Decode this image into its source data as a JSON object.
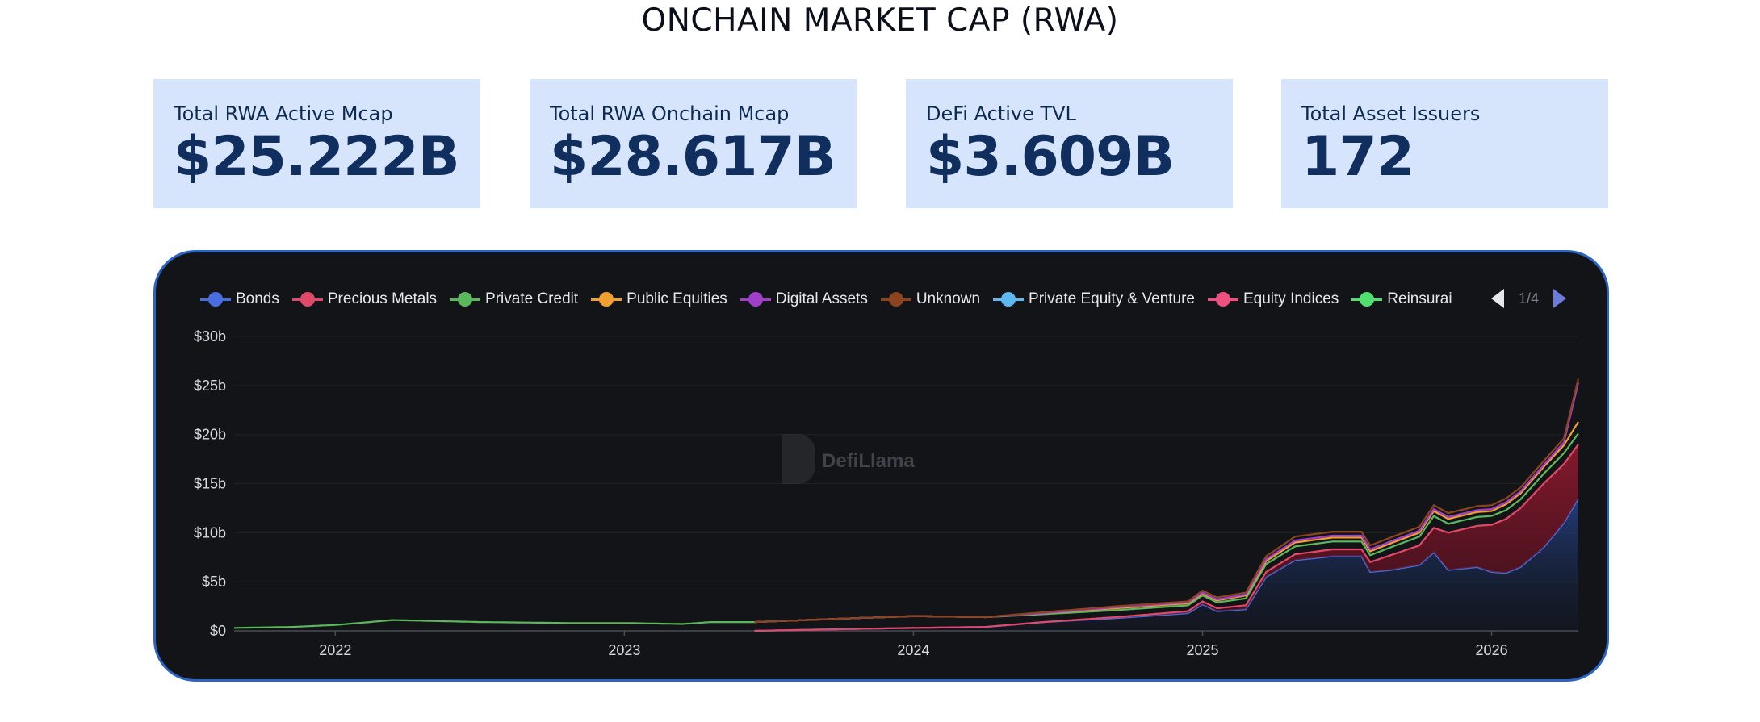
{
  "page_title": "ONCHAIN MARKET CAP (RWA)",
  "stats": [
    {
      "label": "Total RWA Active Mcap",
      "value": "$25.222B"
    },
    {
      "label": "Total RWA Onchain Mcap",
      "value": "$28.617B"
    },
    {
      "label": "DeFi Active TVL",
      "value": "$3.609B"
    },
    {
      "label": "Total Asset Issuers",
      "value": "172"
    }
  ],
  "legend": {
    "items": [
      {
        "name": "Bonds",
        "color": "#4a6ee0"
      },
      {
        "name": "Precious Metals",
        "color": "#e04a68"
      },
      {
        "name": "Private Credit",
        "color": "#5cb85c"
      },
      {
        "name": "Public Equities",
        "color": "#f0a030"
      },
      {
        "name": "Digital Assets",
        "color": "#a040c8"
      },
      {
        "name": "Unknown",
        "color": "#8a4420"
      },
      {
        "name": "Private Equity & Venture",
        "color": "#60b8f0"
      },
      {
        "name": "Equity Indices",
        "color": "#f05080"
      },
      {
        "name": "Reinsurai",
        "color": "#50e070"
      }
    ],
    "page_indicator": "1/4"
  },
  "watermark": "DefiLlama",
  "chart_data": {
    "type": "area",
    "stacked": true,
    "x_ticks": [
      "2022",
      "2023",
      "2024",
      "2025",
      "2026"
    ],
    "y_ticks": [
      "$0",
      "$5b",
      "$10b",
      "$15b",
      "$20b",
      "$25b",
      "$30b"
    ],
    "ylim": [
      0,
      30
    ],
    "xlim": [
      2021.65,
      2026.3
    ],
    "grid": true,
    "series": [
      {
        "name": "Bonds",
        "color": "#4a6ee0",
        "points": [
          [
            2023.45,
            0
          ],
          [
            2023.8,
            0.2
          ],
          [
            2024.0,
            0.3
          ],
          [
            2024.25,
            0.4
          ],
          [
            2024.45,
            0.9
          ],
          [
            2024.7,
            1.3
          ],
          [
            2024.95,
            1.8
          ],
          [
            2025.0,
            2.7
          ],
          [
            2025.05,
            2.0
          ],
          [
            2025.15,
            2.2
          ],
          [
            2025.22,
            5.5
          ],
          [
            2025.32,
            7.2
          ],
          [
            2025.45,
            7.6
          ],
          [
            2025.55,
            7.6
          ],
          [
            2025.58,
            6.0
          ],
          [
            2025.65,
            6.2
          ],
          [
            2025.75,
            6.7
          ],
          [
            2025.8,
            8.0
          ],
          [
            2025.85,
            6.2
          ],
          [
            2025.95,
            6.5
          ],
          [
            2026.0,
            6.0
          ],
          [
            2026.05,
            5.9
          ],
          [
            2026.1,
            6.5
          ],
          [
            2026.18,
            8.5
          ],
          [
            2026.25,
            11.0
          ],
          [
            2026.3,
            13.5
          ]
        ]
      },
      {
        "name": "Precious Metals",
        "color": "#e04a68",
        "points": [
          [
            2023.45,
            0
          ],
          [
            2023.8,
            0
          ],
          [
            2024.0,
            0
          ],
          [
            2024.25,
            0
          ],
          [
            2024.45,
            0
          ],
          [
            2024.7,
            0.1
          ],
          [
            2024.95,
            0.2
          ],
          [
            2025.0,
            0.3
          ],
          [
            2025.05,
            0.3
          ],
          [
            2025.15,
            0.4
          ],
          [
            2025.22,
            0.5
          ],
          [
            2025.32,
            0.6
          ],
          [
            2025.45,
            0.7
          ],
          [
            2025.55,
            0.7
          ],
          [
            2025.58,
            1.0
          ],
          [
            2025.65,
            1.5
          ],
          [
            2025.75,
            2.0
          ],
          [
            2025.8,
            2.5
          ],
          [
            2025.85,
            3.8
          ],
          [
            2025.95,
            4.2
          ],
          [
            2026.0,
            4.8
          ],
          [
            2026.05,
            5.5
          ],
          [
            2026.1,
            6.0
          ],
          [
            2026.18,
            6.5
          ],
          [
            2026.25,
            6.0
          ],
          [
            2026.3,
            5.5
          ]
        ]
      },
      {
        "name": "Private Credit",
        "color": "#5cb85c",
        "points": [
          [
            2021.65,
            0.3
          ],
          [
            2021.85,
            0.4
          ],
          [
            2022.0,
            0.6
          ],
          [
            2022.2,
            1.1
          ],
          [
            2022.5,
            0.9
          ],
          [
            2022.8,
            0.8
          ],
          [
            2023.0,
            0.8
          ],
          [
            2023.2,
            0.7
          ],
          [
            2023.3,
            0.9
          ],
          [
            2023.45,
            0.9
          ],
          [
            2023.8,
            1.1
          ],
          [
            2024.0,
            1.2
          ],
          [
            2024.25,
            1.0
          ],
          [
            2024.45,
            0.8
          ],
          [
            2024.7,
            0.7
          ],
          [
            2024.95,
            0.6
          ],
          [
            2025.0,
            0.6
          ],
          [
            2025.05,
            0.6
          ],
          [
            2025.15,
            0.7
          ],
          [
            2025.22,
            0.8
          ],
          [
            2025.32,
            0.8
          ],
          [
            2025.45,
            0.8
          ],
          [
            2025.55,
            0.8
          ],
          [
            2025.58,
            0.7
          ],
          [
            2025.65,
            0.8
          ],
          [
            2025.75,
            0.9
          ],
          [
            2025.8,
            1.2
          ],
          [
            2025.85,
            0.9
          ],
          [
            2025.95,
            0.9
          ],
          [
            2026.0,
            0.9
          ],
          [
            2026.05,
            0.9
          ],
          [
            2026.1,
            0.9
          ],
          [
            2026.18,
            1.0
          ],
          [
            2026.25,
            1.1
          ],
          [
            2026.3,
            1.1
          ]
        ]
      },
      {
        "name": "Public Equities",
        "color": "#f0a030",
        "points": [
          [
            2023.45,
            0
          ],
          [
            2023.8,
            0
          ],
          [
            2024.0,
            0
          ],
          [
            2024.25,
            0
          ],
          [
            2024.45,
            0.1
          ],
          [
            2024.7,
            0.2
          ],
          [
            2024.95,
            0.2
          ],
          [
            2025.0,
            0.2
          ],
          [
            2025.05,
            0.2
          ],
          [
            2025.15,
            0.3
          ],
          [
            2025.22,
            0.3
          ],
          [
            2025.32,
            0.4
          ],
          [
            2025.45,
            0.4
          ],
          [
            2025.55,
            0.4
          ],
          [
            2025.58,
            0.4
          ],
          [
            2025.65,
            0.4
          ],
          [
            2025.75,
            0.4
          ],
          [
            2025.8,
            0.5
          ],
          [
            2025.85,
            0.5
          ],
          [
            2025.95,
            0.5
          ],
          [
            2026.0,
            0.5
          ],
          [
            2026.05,
            0.6
          ],
          [
            2026.1,
            0.6
          ],
          [
            2026.18,
            0.7
          ],
          [
            2026.25,
            0.8
          ],
          [
            2026.3,
            1.2
          ]
        ]
      },
      {
        "name": "Digital Assets",
        "color": "#a040c8",
        "points": [
          [
            2023.45,
            0
          ],
          [
            2023.8,
            0
          ],
          [
            2024.0,
            0
          ],
          [
            2024.25,
            0
          ],
          [
            2024.45,
            0
          ],
          [
            2024.7,
            0.1
          ],
          [
            2024.95,
            0.1
          ],
          [
            2025.0,
            0.1
          ],
          [
            2025.05,
            0.1
          ],
          [
            2025.15,
            0.1
          ],
          [
            2025.22,
            0.2
          ],
          [
            2025.32,
            0.2
          ],
          [
            2025.45,
            0.2
          ],
          [
            2025.55,
            0.2
          ],
          [
            2025.58,
            0.2
          ],
          [
            2025.65,
            0.2
          ],
          [
            2025.75,
            0.2
          ],
          [
            2025.8,
            0.2
          ],
          [
            2025.85,
            0.2
          ],
          [
            2025.95,
            0.2
          ],
          [
            2026.0,
            0.2
          ],
          [
            2026.05,
            0.2
          ],
          [
            2026.1,
            0.2
          ],
          [
            2026.18,
            0.2
          ],
          [
            2026.25,
            0.3
          ],
          [
            2026.3,
            4.0
          ]
        ]
      },
      {
        "name": "Unknown",
        "color": "#8a4420",
        "points": [
          [
            2023.45,
            0
          ],
          [
            2023.8,
            0
          ],
          [
            2024.0,
            0
          ],
          [
            2024.25,
            0
          ],
          [
            2024.45,
            0.1
          ],
          [
            2024.7,
            0.1
          ],
          [
            2024.95,
            0.1
          ],
          [
            2025.0,
            0.2
          ],
          [
            2025.05,
            0.2
          ],
          [
            2025.15,
            0.2
          ],
          [
            2025.22,
            0.3
          ],
          [
            2025.32,
            0.4
          ],
          [
            2025.45,
            0.4
          ],
          [
            2025.55,
            0.4
          ],
          [
            2025.58,
            0.4
          ],
          [
            2025.65,
            0.4
          ],
          [
            2025.75,
            0.4
          ],
          [
            2025.8,
            0.4
          ],
          [
            2025.85,
            0.4
          ],
          [
            2025.95,
            0.4
          ],
          [
            2026.0,
            0.4
          ],
          [
            2026.05,
            0.4
          ],
          [
            2026.1,
            0.4
          ],
          [
            2026.18,
            0.4
          ],
          [
            2026.25,
            0.4
          ],
          [
            2026.3,
            0.4
          ]
        ]
      }
    ]
  }
}
